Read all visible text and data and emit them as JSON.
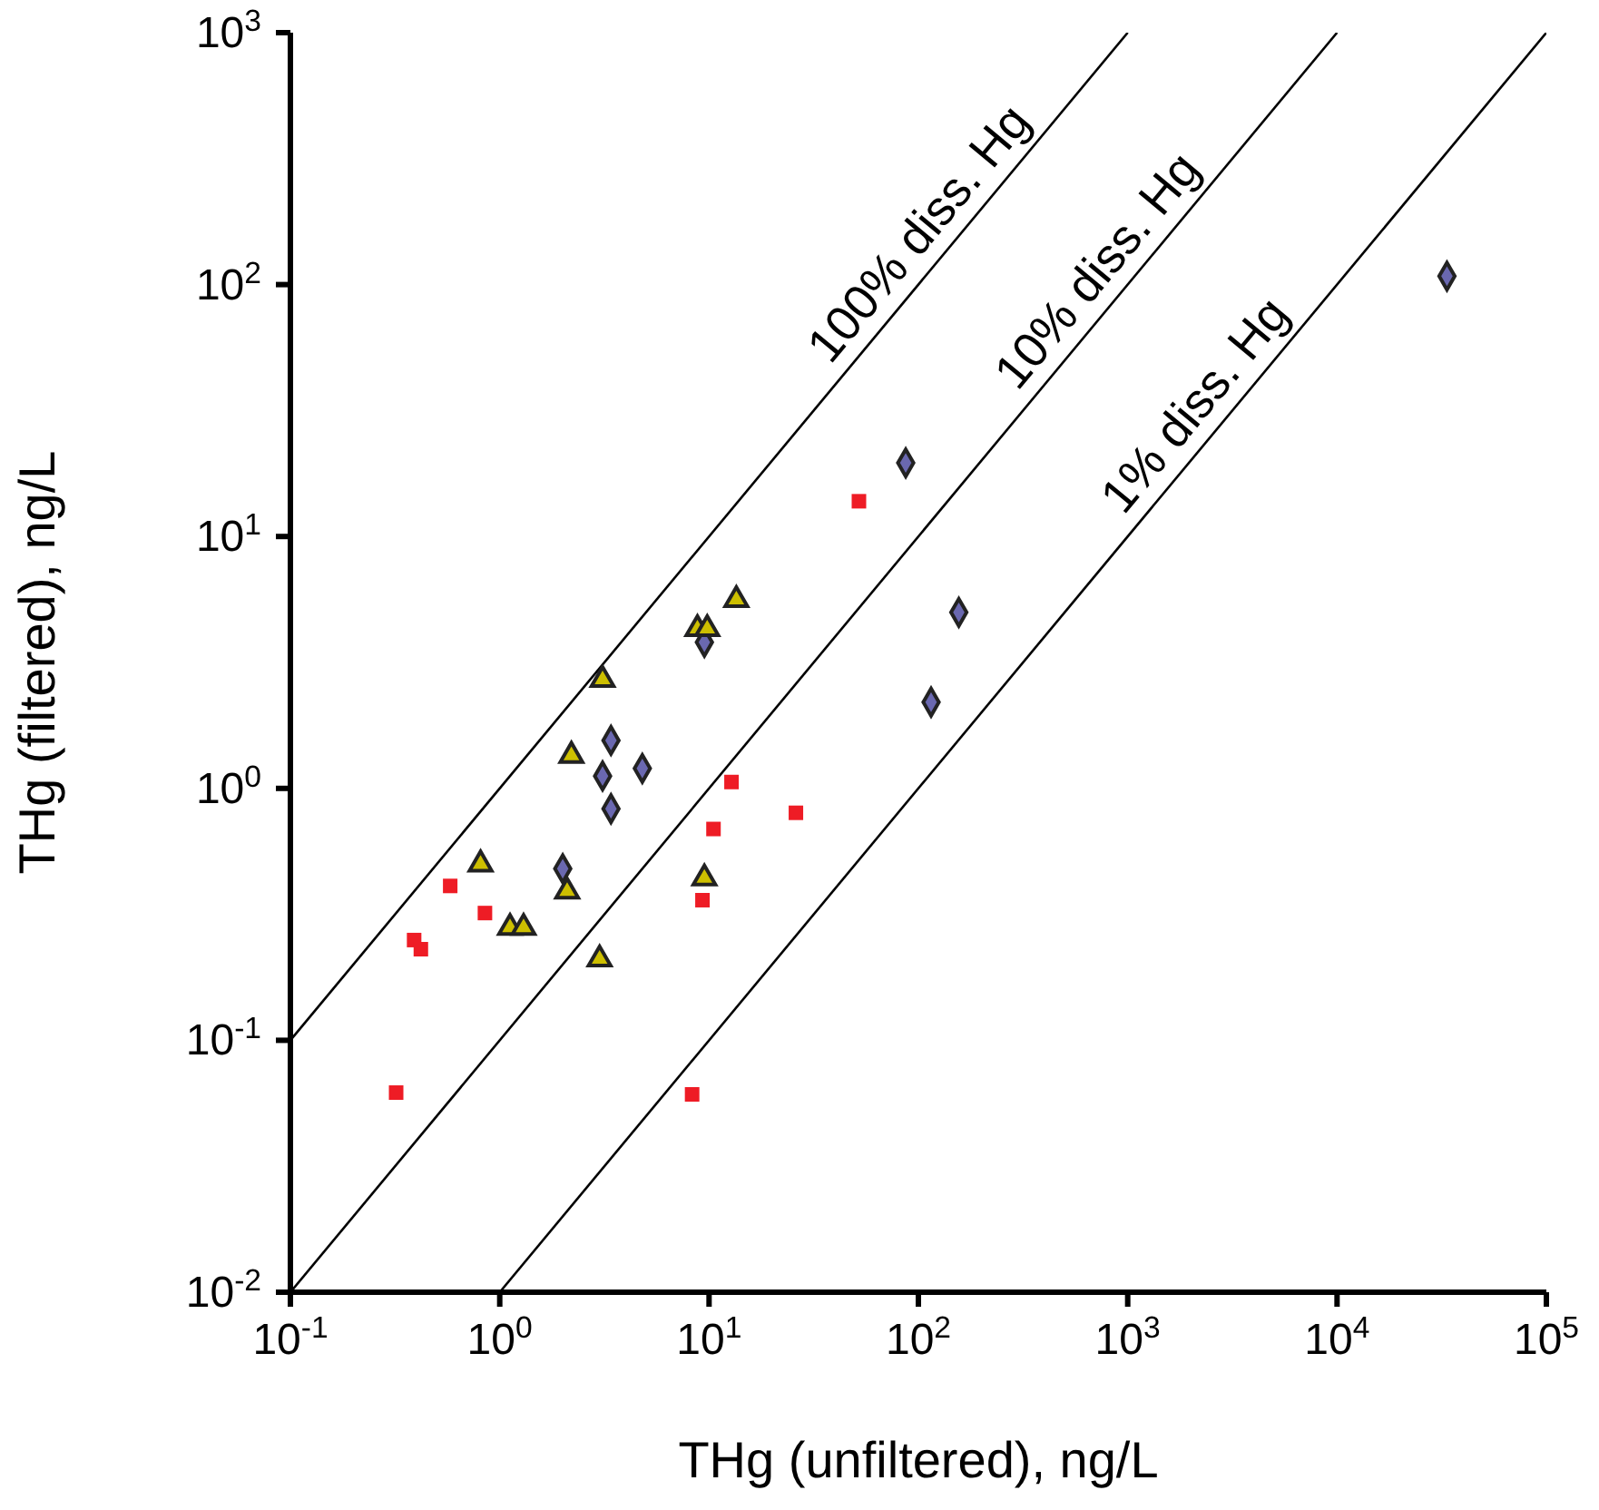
{
  "chart_data": {
    "type": "scatter",
    "xlabel": "THg (unfiltered), ng/L",
    "ylabel": "THg (filtered), ng/L",
    "log": "xy",
    "xlim": [
      0.1,
      100000
    ],
    "ylim": [
      0.01,
      1000
    ],
    "xticks": [
      {
        "value": 0.1,
        "label": "10$^{-1}$"
      },
      {
        "value": 1,
        "label": "10$^{0}$"
      },
      {
        "value": 10,
        "label": "10$^{1}$"
      },
      {
        "value": 100,
        "label": "10$^{2}$"
      },
      {
        "value": 1000,
        "label": "10$^{3}$"
      },
      {
        "value": 10000,
        "label": "10$^{4}$"
      },
      {
        "value": 100000,
        "label": "10$^{5}$"
      }
    ],
    "yticks": [
      {
        "value": 0.01,
        "label": "10$^{-2}$"
      },
      {
        "value": 0.1,
        "label": "10$^{-1}$"
      },
      {
        "value": 1,
        "label": "10$^{0}$"
      },
      {
        "value": 10,
        "label": "10$^{1}$"
      },
      {
        "value": 100,
        "label": "10$^{2}$"
      },
      {
        "value": 1000,
        "label": "10$^{3}$"
      }
    ],
    "series": [
      {
        "type": "line",
        "color": "#000000",
        "marker": "none",
        "line_style": "solid",
        "x": [
          0.1,
          1000
        ],
        "values": [
          0.1,
          1000
        ]
      },
      {
        "type": "line",
        "color": "#000000",
        "marker": "none",
        "line_style": "solid",
        "x": [
          0.1,
          10000
        ],
        "values": [
          0.01,
          1000
        ]
      },
      {
        "type": "line",
        "color": "#000000",
        "marker": "none",
        "line_style": "solid",
        "x": [
          1,
          100000
        ],
        "values": [
          0.01,
          1000
        ]
      },
      {
        "color": "#ee1c25",
        "marker": "square",
        "x": [
          0.32,
          0.39,
          0.42,
          0.58,
          0.85,
          26,
          12.8,
          10.5,
          9.3,
          52,
          8.3
        ],
        "values": [
          0.062,
          0.25,
          0.23,
          0.41,
          0.32,
          0.8,
          1.06,
          0.69,
          0.36,
          13.8,
          0.061
        ]
      },
      {
        "color": "#6a68b0",
        "marker": "diamond",
        "x": [
          33500,
          87,
          156,
          115,
          3.4,
          4.8,
          3.1,
          3.4,
          2.0,
          9.5
        ],
        "values": [
          108,
          19.6,
          5.0,
          2.2,
          1.55,
          1.2,
          1.12,
          0.83,
          0.48,
          3.8
        ]
      },
      {
        "color": "#cdbf00",
        "marker": "triangle",
        "x": [
          13.5,
          8.8,
          9.8,
          3.1,
          2.2,
          0.81,
          2.1,
          1.12,
          1.3,
          3.0,
          9.5
        ],
        "values": [
          5.6,
          4.3,
          4.3,
          2.7,
          1.35,
          0.5,
          0.39,
          0.28,
          0.28,
          0.21,
          0.44
        ]
      }
    ],
    "annotations": [
      {
        "text": "100% diss. Hg",
        "x": 132,
        "y": 132
      },
      {
        "text": "10% diss. Hg",
        "x": 940,
        "y": 94
      },
      {
        "text": "1% diss. Hg",
        "x": 2750,
        "y": 27.5
      }
    ]
  }
}
